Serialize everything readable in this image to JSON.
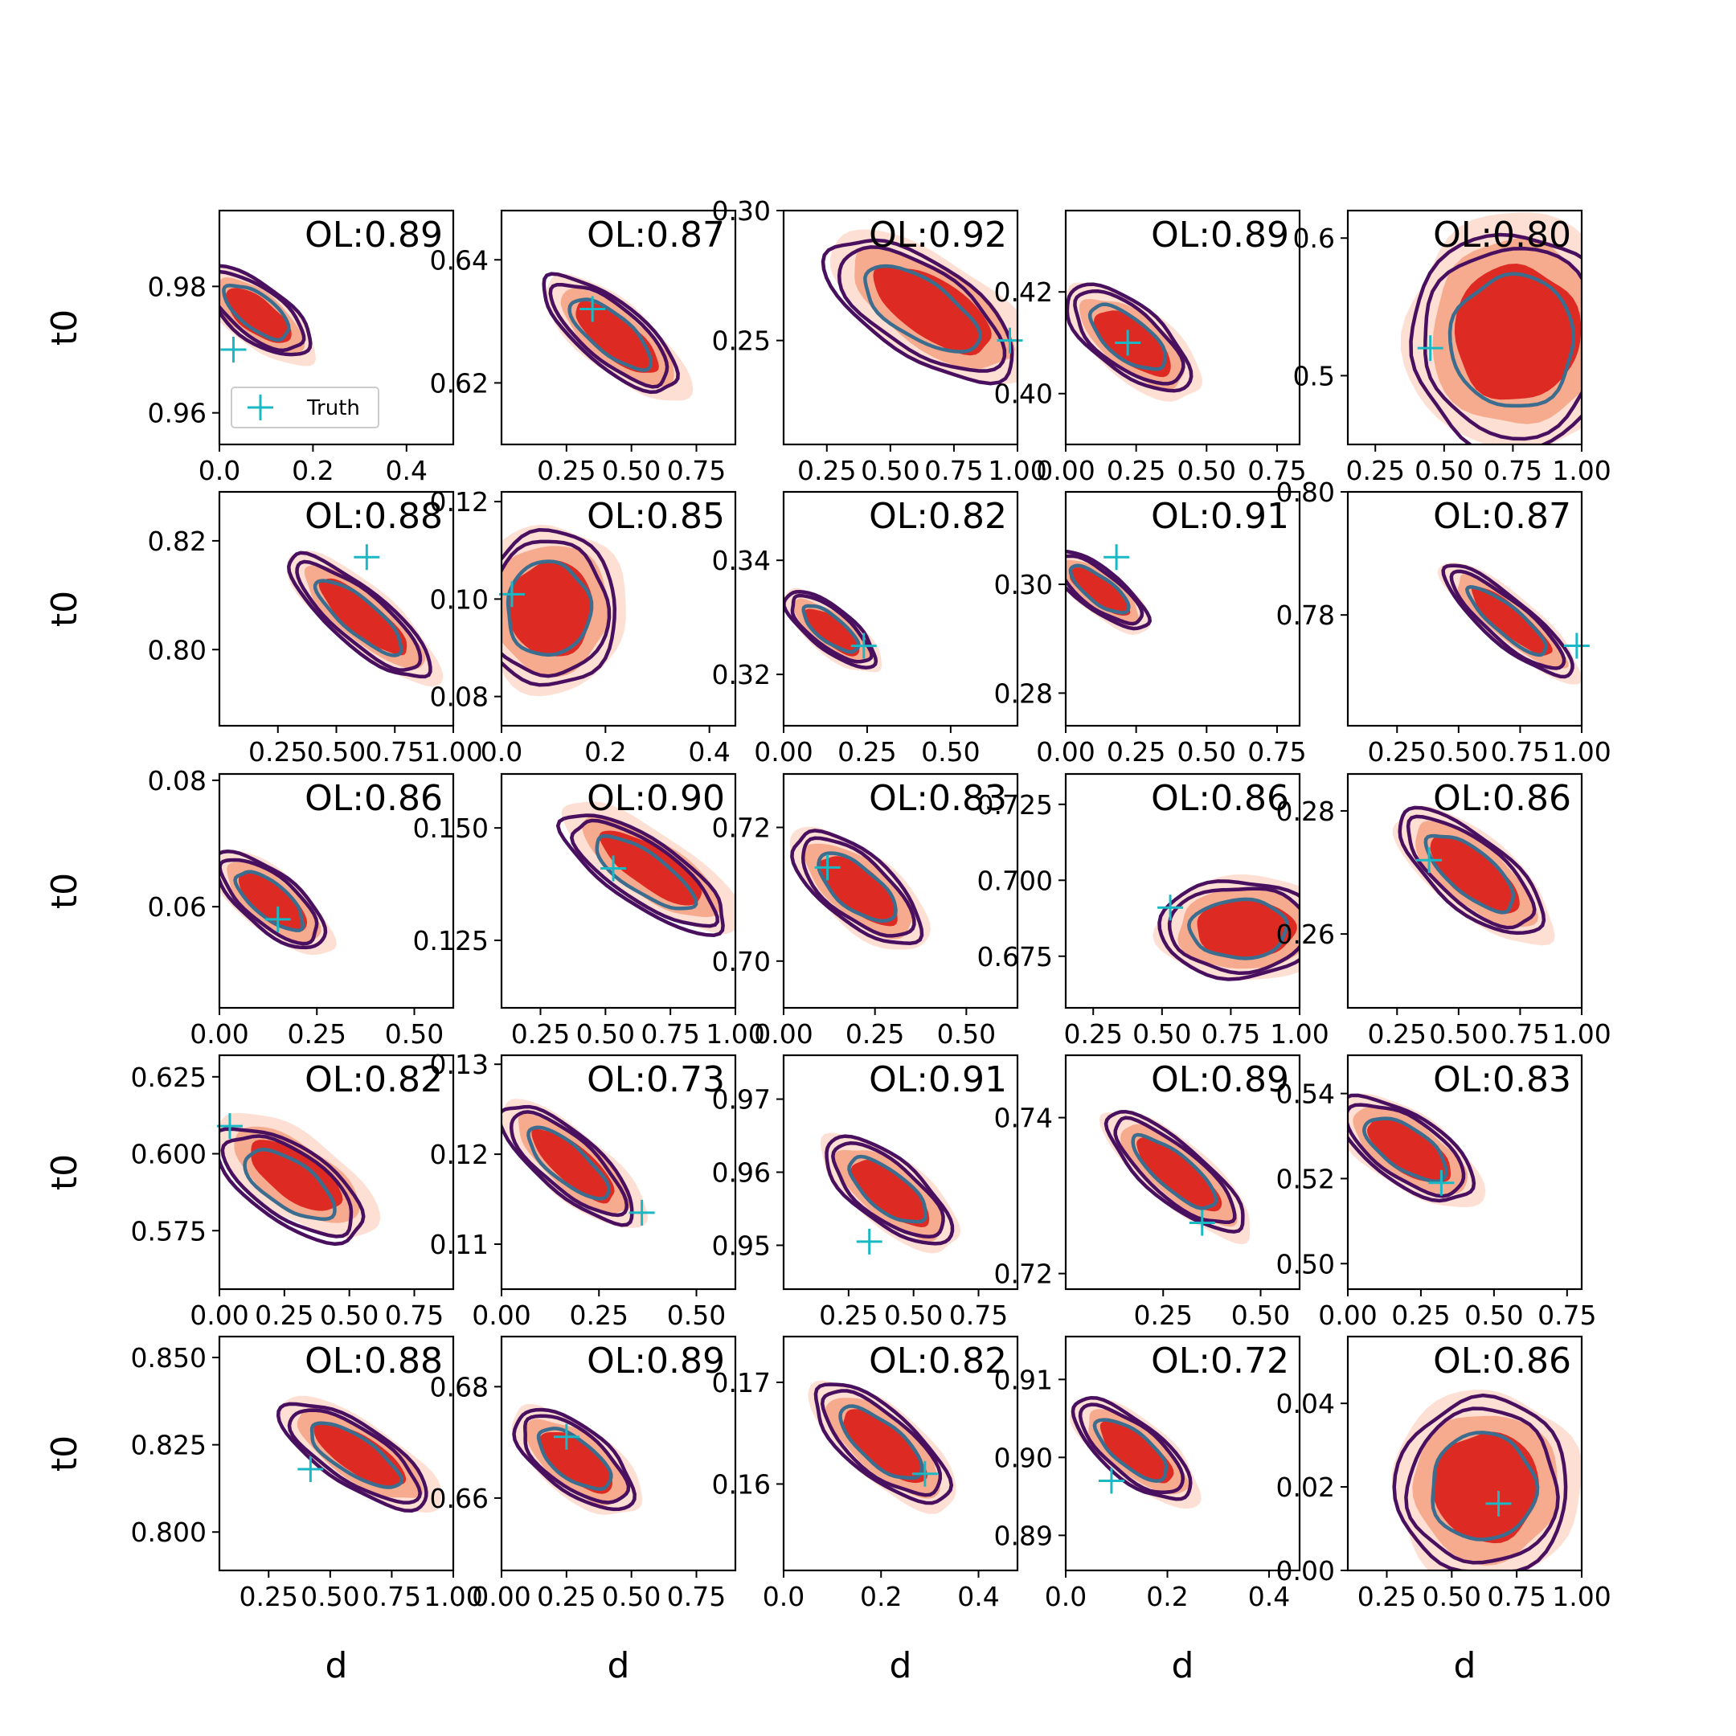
{
  "figure": {
    "xlabel": "d",
    "ylabel": "t0",
    "legend_label": "Truth"
  },
  "colors": {
    "fill_light": "#fde0d3",
    "fill_mid": "#f6ab8f",
    "fill_dark": "#dd2b24",
    "contour_inner": "#3d6d8e",
    "contour_outer": "#4a1060",
    "truth_marker": "#1ab8c4"
  },
  "chart_data": [
    {
      "type": "contour",
      "annotation": "OL:0.89",
      "xlim": [
        0,
        0.5
      ],
      "xticks": [
        "0.0",
        "0.2",
        "0.4"
      ],
      "yticks": [
        "0.96",
        "0.98"
      ],
      "ylim": [
        0.955,
        0.992
      ],
      "center": [
        0.08,
        0.976
      ],
      "spread": [
        0.09,
        0.006
      ],
      "slope": -0.5,
      "fill_shift": [
        0.02,
        0.2
      ],
      "truth": [
        0.03,
        0.97
      ],
      "show_ylabel": true,
      "legend": true
    },
    {
      "type": "contour",
      "annotation": "OL:0.87",
      "xlim": [
        0,
        0.9
      ],
      "xticks": [
        "0.25",
        "0.50",
        "0.75"
      ],
      "yticks": [
        "0.62",
        "0.64"
      ],
      "ylim": [
        0.61,
        0.648
      ],
      "center": [
        0.42,
        0.628
      ],
      "spread": [
        0.23,
        0.007
      ],
      "slope": -0.7,
      "fill_shift": [
        0.1,
        0.2
      ],
      "truth": [
        0.35,
        0.632
      ]
    },
    {
      "type": "contour",
      "annotation": "OL:0.92",
      "xlim": [
        0.08,
        1.0
      ],
      "xticks": [
        "0.25",
        "0.50",
        "0.75",
        "1.00"
      ],
      "yticks": [
        "0.25",
        "0.30"
      ],
      "ylim": [
        0.21,
        0.3
      ],
      "center": [
        0.62,
        0.262
      ],
      "spread": [
        0.28,
        0.025
      ],
      "slope": -0.1,
      "fill_shift": [
        0.15,
        0.0
      ],
      "truth": [
        0.97,
        0.25
      ]
    },
    {
      "type": "contour",
      "annotation": "OL:0.89",
      "xlim": [
        0,
        0.83
      ],
      "xticks": [
        "0.00",
        "0.25",
        "0.50",
        "0.75"
      ],
      "yticks": [
        "0.40",
        "0.42"
      ],
      "ylim": [
        0.39,
        0.436
      ],
      "center": [
        0.22,
        0.411
      ],
      "spread": [
        0.17,
        0.009
      ],
      "slope": -0.6,
      "fill_shift": [
        0.1,
        0.2
      ],
      "truth": [
        0.22,
        0.41
      ]
    },
    {
      "type": "contour",
      "annotation": "OL:0.80",
      "xlim": [
        0.15,
        1.0
      ],
      "xticks": [
        "0.25",
        "0.50",
        "0.75",
        "1.00"
      ],
      "yticks": [
        "0.5",
        "0.6"
      ],
      "ylim": [
        0.45,
        0.62
      ],
      "center": [
        0.75,
        0.525
      ],
      "spread": [
        0.28,
        0.06
      ],
      "slope": 0.0,
      "fill_shift": [
        0.05,
        -0.1
      ],
      "truth": [
        0.45,
        0.52
      ]
    },
    {
      "type": "contour",
      "annotation": "OL:0.88",
      "xlim": [
        0,
        1.0
      ],
      "xticks": [
        "0.25",
        "0.50",
        "0.75",
        "1.00"
      ],
      "yticks": [
        "0.80",
        "0.82"
      ],
      "ylim": [
        0.786,
        0.829
      ],
      "center": [
        0.6,
        0.806
      ],
      "spread": [
        0.3,
        0.007
      ],
      "slope": -0.75,
      "fill_shift": [
        0.05,
        0.0
      ],
      "truth": [
        0.63,
        0.817
      ],
      "show_ylabel": true
    },
    {
      "type": "contour",
      "annotation": "OL:0.85",
      "xlim": [
        0,
        0.45
      ],
      "xticks": [
        "0.0",
        "0.2",
        "0.4"
      ],
      "yticks": [
        "0.08",
        "0.10",
        "0.12"
      ],
      "ylim": [
        0.074,
        0.122
      ],
      "center": [
        0.09,
        0.098
      ],
      "spread": [
        0.1,
        0.012
      ],
      "slope": 0.0,
      "fill_shift": [
        0.05,
        0.0
      ],
      "truth": [
        0.02,
        0.101
      ]
    },
    {
      "type": "contour",
      "annotation": "OL:0.82",
      "xlim": [
        0,
        0.7
      ],
      "xticks": [
        "0.00",
        "0.25",
        "0.50"
      ],
      "yticks": [
        "0.32",
        "0.34"
      ],
      "ylim": [
        0.311,
        0.352
      ],
      "center": [
        0.14,
        0.328
      ],
      "spread": [
        0.12,
        0.005
      ],
      "slope": -0.6,
      "fill_shift": [
        0.05,
        0.2
      ],
      "truth": [
        0.24,
        0.325
      ]
    },
    {
      "type": "contour",
      "annotation": "OL:0.91",
      "xlim": [
        0,
        0.83
      ],
      "xticks": [
        "0.00",
        "0.25",
        "0.50",
        "0.75"
      ],
      "yticks": [
        "0.28",
        "0.30"
      ],
      "ylim": [
        0.274,
        0.317
      ],
      "center": [
        0.12,
        0.299
      ],
      "spread": [
        0.1,
        0.008
      ],
      "slope": -0.5,
      "fill_shift": [
        0.0,
        0.1
      ],
      "truth": [
        0.18,
        0.305
      ]
    },
    {
      "type": "contour",
      "annotation": "OL:0.87",
      "xlim": [
        0.05,
        1.0
      ],
      "xticks": [
        "0.25",
        "0.50",
        "0.75",
        "1.00"
      ],
      "yticks": [
        "0.78",
        "0.80"
      ],
      "ylim": [
        0.762,
        0.8
      ],
      "center": [
        0.7,
        0.779
      ],
      "spread": [
        0.27,
        0.005
      ],
      "slope": -0.75,
      "fill_shift": [
        0.05,
        0.0
      ],
      "truth": [
        0.98,
        0.775
      ]
    },
    {
      "type": "contour",
      "annotation": "OL:0.86",
      "xlim": [
        0,
        0.6
      ],
      "xticks": [
        "0.00",
        "0.25",
        "0.50"
      ],
      "yticks": [
        "0.06",
        "0.08"
      ],
      "ylim": [
        0.044,
        0.081
      ],
      "center": [
        0.13,
        0.061
      ],
      "spread": [
        0.12,
        0.006
      ],
      "slope": -0.7,
      "fill_shift": [
        0.05,
        0.1
      ],
      "truth": [
        0.15,
        0.058
      ],
      "show_ylabel": true
    },
    {
      "type": "contour",
      "annotation": "OL:0.90",
      "xlim": [
        0.1,
        1.0
      ],
      "xticks": [
        "0.25",
        "0.50",
        "0.75",
        "1.00"
      ],
      "yticks": [
        "0.125",
        "0.150"
      ],
      "ylim": [
        0.11,
        0.162
      ],
      "center": [
        0.65,
        0.14
      ],
      "spread": [
        0.28,
        0.01
      ],
      "slope": -0.2,
      "fill_shift": [
        0.1,
        -0.2
      ],
      "truth": [
        0.53,
        0.141
      ]
    },
    {
      "type": "contour",
      "annotation": "OL:0.83",
      "xlim": [
        0,
        0.64
      ],
      "xticks": [
        "0.00",
        "0.25",
        "0.50"
      ],
      "yticks": [
        "0.70",
        "0.72"
      ],
      "ylim": [
        0.693,
        0.728
      ],
      "center": [
        0.2,
        0.711
      ],
      "spread": [
        0.14,
        0.007
      ],
      "slope": -0.7,
      "fill_shift": [
        0.05,
        0.1
      ],
      "truth": [
        0.12,
        0.714
      ]
    },
    {
      "type": "contour",
      "annotation": "OL:0.86",
      "xlim": [
        0.15,
        1.0
      ],
      "xticks": [
        "0.25",
        "0.50",
        "0.75",
        "1.00"
      ],
      "yticks": [
        "0.675",
        "0.700",
        "0.725"
      ],
      "ylim": [
        0.658,
        0.735
      ],
      "center": [
        0.78,
        0.684
      ],
      "spread": [
        0.22,
        0.012
      ],
      "slope": 0.0,
      "fill_shift": [
        0.1,
        0.0
      ],
      "truth": [
        0.53,
        0.691
      ]
    },
    {
      "type": "contour",
      "annotation": "OL:0.86",
      "xlim": [
        0.05,
        1.0
      ],
      "xticks": [
        "0.25",
        "0.50",
        "0.75",
        "1.00"
      ],
      "yticks": [
        "0.26",
        "0.28"
      ],
      "ylim": [
        0.248,
        0.286
      ],
      "center": [
        0.55,
        0.27
      ],
      "spread": [
        0.25,
        0.008
      ],
      "slope": -0.7,
      "fill_shift": [
        0.05,
        0.1
      ],
      "truth": [
        0.38,
        0.272
      ]
    },
    {
      "type": "contour",
      "annotation": "OL:0.82",
      "xlim": [
        0,
        0.9
      ],
      "xticks": [
        "0.00",
        "0.25",
        "0.50",
        "0.75"
      ],
      "yticks": [
        "0.575",
        "0.600",
        "0.625"
      ],
      "ylim": [
        0.556,
        0.632
      ],
      "center": [
        0.27,
        0.59
      ],
      "spread": [
        0.2,
        0.018
      ],
      "slope": -0.2,
      "fill_shift": [
        0.1,
        -0.3
      ],
      "truth": [
        0.04,
        0.609
      ],
      "show_ylabel": true
    },
    {
      "type": "contour",
      "annotation": "OL:0.73",
      "xlim": [
        0,
        0.6
      ],
      "xticks": [
        "0.00",
        "0.25",
        "0.50"
      ],
      "yticks": [
        "0.11",
        "0.12",
        "0.13"
      ],
      "ylim": [
        0.105,
        0.131
      ],
      "center": [
        0.17,
        0.119
      ],
      "spread": [
        0.16,
        0.0045
      ],
      "slope": -0.8,
      "fill_shift": [
        0.1,
        0.1
      ],
      "truth": [
        0.36,
        0.1135
      ]
    },
    {
      "type": "contour",
      "annotation": "OL:0.91",
      "xlim": [
        0,
        0.9
      ],
      "xticks": [
        "0.25",
        "0.50",
        "0.75"
      ],
      "yticks": [
        "0.95",
        "0.96",
        "0.97"
      ],
      "ylim": [
        0.944,
        0.976
      ],
      "center": [
        0.4,
        0.9575
      ],
      "spread": [
        0.2,
        0.006
      ],
      "slope": -0.6,
      "fill_shift": [
        0.05,
        0.1
      ],
      "truth": [
        0.33,
        0.9505
      ]
    },
    {
      "type": "contour",
      "annotation": "OL:0.89",
      "xlim": [
        0,
        0.6
      ],
      "xticks": [
        "0.25",
        "0.50"
      ],
      "yticks": [
        "0.72",
        "0.74"
      ],
      "ylim": [
        0.718,
        0.748
      ],
      "center": [
        0.28,
        0.733
      ],
      "spread": [
        0.17,
        0.005
      ],
      "slope": -0.75,
      "fill_shift": [
        0.05,
        0.1
      ],
      "truth": [
        0.35,
        0.7265
      ]
    },
    {
      "type": "contour",
      "annotation": "OL:0.83",
      "xlim": [
        0,
        0.8
      ],
      "xticks": [
        "0.00",
        "0.25",
        "0.50",
        "0.75"
      ],
      "yticks": [
        "0.50",
        "0.52",
        "0.54"
      ],
      "ylim": [
        0.494,
        0.549
      ],
      "center": [
        0.2,
        0.527
      ],
      "spread": [
        0.16,
        0.012
      ],
      "slope": -0.2,
      "fill_shift": [
        0.05,
        0.1
      ],
      "truth": [
        0.32,
        0.519
      ]
    },
    {
      "type": "contour",
      "annotation": "OL:0.88",
      "xlim": [
        0.05,
        1.0
      ],
      "xticks": [
        "0.25",
        "0.50",
        "0.75",
        "1.00"
      ],
      "yticks": [
        "0.800",
        "0.825",
        "0.850"
      ],
      "ylim": [
        0.789,
        0.856
      ],
      "center": [
        0.6,
        0.822
      ],
      "spread": [
        0.26,
        0.012
      ],
      "slope": -0.1,
      "fill_shift": [
        0.08,
        0.0
      ],
      "truth": [
        0.42,
        0.818
      ],
      "show_ylabel": true,
      "show_xlabel": true
    },
    {
      "type": "contour",
      "annotation": "OL:0.89",
      "xlim": [
        0,
        0.9
      ],
      "xticks": [
        "0.00",
        "0.25",
        "0.50",
        "0.75"
      ],
      "yticks": [
        "0.66",
        "0.68"
      ],
      "ylim": [
        0.647,
        0.689
      ],
      "center": [
        0.28,
        0.667
      ],
      "spread": [
        0.17,
        0.008
      ],
      "slope": -0.5,
      "fill_shift": [
        0.05,
        0.1
      ],
      "truth": [
        0.25,
        0.671
      ],
      "show_xlabel": true
    },
    {
      "type": "contour",
      "annotation": "OL:0.82",
      "xlim": [
        0,
        0.48
      ],
      "xticks": [
        "0.0",
        "0.2",
        "0.4"
      ],
      "yticks": [
        "0.16",
        "0.17"
      ],
      "ylim": [
        0.1515,
        0.1745
      ],
      "center": [
        0.2,
        0.164
      ],
      "spread": [
        0.12,
        0.0045
      ],
      "slope": -0.75,
      "fill_shift": [
        0.05,
        0.1
      ],
      "truth": [
        0.29,
        0.161
      ],
      "show_xlabel": true
    },
    {
      "type": "contour",
      "annotation": "OL:0.72",
      "xlim": [
        0,
        0.46
      ],
      "xticks": [
        "0.0",
        "0.2",
        "0.4"
      ],
      "yticks": [
        "0.89",
        "0.90",
        "0.91"
      ],
      "ylim": [
        0.8855,
        0.9155
      ],
      "center": [
        0.13,
        0.901
      ],
      "spread": [
        0.1,
        0.005
      ],
      "slope": -0.65,
      "fill_shift": [
        0.08,
        0.1
      ],
      "truth": [
        0.09,
        0.897
      ],
      "show_xlabel": true
    },
    {
      "type": "contour",
      "annotation": "OL:0.86",
      "xlim": [
        0.1,
        1.0
      ],
      "xticks": [
        "0.25",
        "0.50",
        "0.75",
        "1.00"
      ],
      "yticks": [
        "0.00",
        "0.02",
        "0.04"
      ],
      "ylim": [
        0,
        0.056
      ],
      "center": [
        0.62,
        0.02
      ],
      "spread": [
        0.25,
        0.016
      ],
      "slope": 0.0,
      "fill_shift": [
        0.05,
        0.0
      ],
      "truth": [
        0.68,
        0.016
      ],
      "show_xlabel": true
    }
  ]
}
